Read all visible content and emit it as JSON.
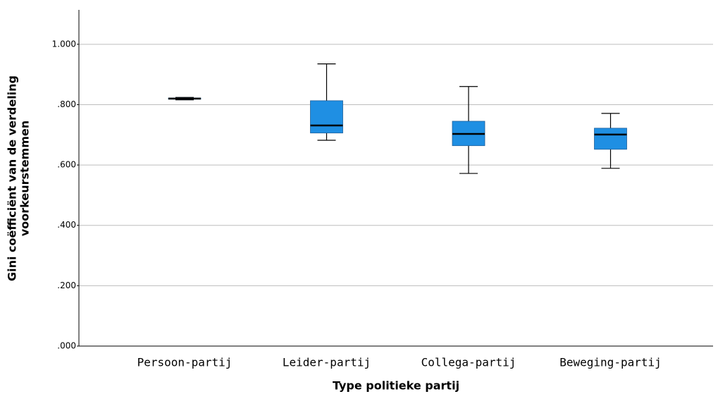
{
  "chart_data": {
    "type": "box",
    "x_label": "Type politieke partij",
    "y_label": [
      "Gini coëfficiënt van de verdeling",
      "voorkeurstemmen"
    ],
    "categories": [
      "Persoon-partij",
      "Leider-partij",
      "Collega-partij",
      "Beweging-partij"
    ],
    "boxes": [
      {
        "min": 0.816,
        "q1": 0.818,
        "median": 0.82,
        "q3": 0.822,
        "max": 0.824
      },
      {
        "min": 0.682,
        "q1": 0.706,
        "median": 0.731,
        "q3": 0.813,
        "max": 0.935
      },
      {
        "min": 0.572,
        "q1": 0.664,
        "median": 0.703,
        "q3": 0.745,
        "max": 0.86
      },
      {
        "min": 0.589,
        "q1": 0.652,
        "median": 0.701,
        "q3": 0.722,
        "max": 0.771
      }
    ],
    "color": "#1f8fe3",
    "ylim": [
      0,
      1.1
    ],
    "yticks": [
      {
        "value": 0,
        "label": ".000"
      },
      {
        "value": 0.2,
        "label": ".200"
      },
      {
        "value": 0.4,
        "label": ".400"
      },
      {
        "value": 0.6,
        "label": ".600"
      },
      {
        "value": 0.8,
        "label": ".800"
      },
      {
        "value": 1.0,
        "label": "1.000"
      }
    ],
    "grid": true
  }
}
